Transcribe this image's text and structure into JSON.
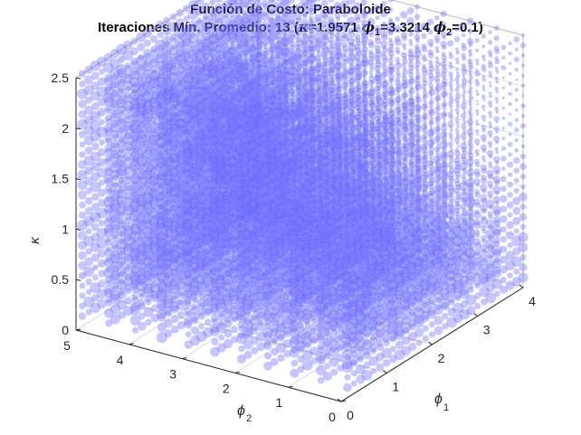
{
  "chart_data": {
    "type": "scatter3d",
    "title": "Función de Costo: Paraboloide",
    "subtitle": {
      "prefix": "Iteraciones Mín. Promedio: 13 (",
      "kappa_symbol": "κ",
      "kappa_value": "=1.9571",
      "phi_symbol": "ϕ",
      "phi1_sub": "1",
      "phi1_value": "=3.3214",
      "phi2_sub": "2",
      "phi2_value": "=0.1)"
    },
    "axes": {
      "x": {
        "label": "ϕ",
        "label_sub": "1",
        "range": [
          0,
          4
        ],
        "ticks": [
          "0",
          "1",
          "2",
          "3",
          "4"
        ]
      },
      "y": {
        "label": "ϕ",
        "label_sub": "2",
        "range": [
          0,
          5
        ],
        "ticks": [
          "0",
          "1",
          "2",
          "3",
          "4",
          "5"
        ]
      },
      "z": {
        "label": "κ",
        "range": [
          0,
          2.5
        ],
        "ticks": [
          "0",
          "0.5",
          "1",
          "1.5",
          "2",
          "2.5"
        ]
      }
    },
    "grid": true,
    "marker_color": "#7a7aff",
    "grid_description": {
      "phi1": {
        "start": 0,
        "end": 4,
        "step": 0.143
      },
      "phi2": {
        "start": 0,
        "end": 5,
        "step": 0.5
      },
      "kappa": {
        "start": 0.1,
        "end": 2.5,
        "step": 0.1
      }
    },
    "marker_size_meaning": "average iterations (smaller = fewer iterations)"
  },
  "colors": {
    "background": "#ffffff",
    "box": "#262626",
    "grid": "#dcdcdc",
    "marker": "#6b6bff"
  }
}
